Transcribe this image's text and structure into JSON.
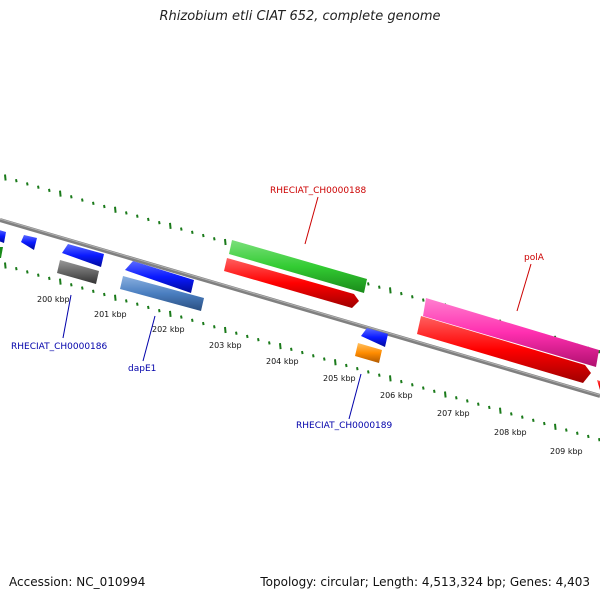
{
  "title": "Rhizobium etli CIAT 652, complete genome",
  "footer": {
    "accession": "Accession: NC_010994",
    "stats": "Topology: circular; Length: 4,513,324 bp; Genes: 4,403"
  },
  "ticks": [
    {
      "label": "200 kbp"
    },
    {
      "label": "201 kbp"
    },
    {
      "label": "202 kbp"
    },
    {
      "label": "203 kbp"
    },
    {
      "label": "204 kbp"
    },
    {
      "label": "205 kbp"
    },
    {
      "label": "206 kbp"
    },
    {
      "label": "207 kbp"
    },
    {
      "label": "208 kbp"
    },
    {
      "label": "209 kbp"
    }
  ],
  "genes": [
    {
      "label": "RHECIAT_CH0000188",
      "color": "#cc0000"
    },
    {
      "label": "polA",
      "color": "#cc0000"
    },
    {
      "label": "RHECIAT_CH0000186",
      "color": "#0000aa"
    },
    {
      "label": "dapE1",
      "color": "#0000aa"
    },
    {
      "label": "RHECIAT_CH0000189",
      "color": "#0000aa"
    }
  ],
  "colors": {
    "backbone": "#808080",
    "tick": "#1a7a1a",
    "cds_forward": "#0a1aff",
    "green_feature": "#33cc33",
    "red_feature": "#ff0000",
    "magenta_feature": "#ff2fb0",
    "grey_feature": "#666666",
    "steel_feature": "#4a7ec0",
    "orange_feature": "#ff8c00"
  }
}
